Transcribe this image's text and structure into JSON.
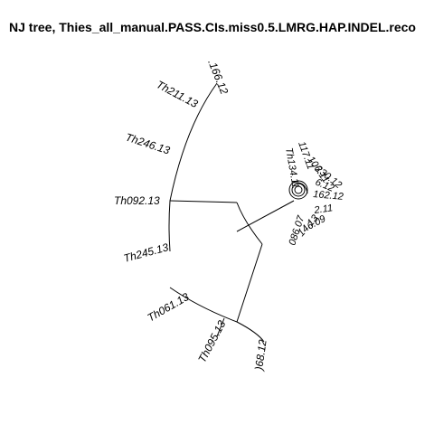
{
  "title": "NJ tree,  Thies_all_manual.PASS.CIs.miss0.5.LMRG.HAP.INDEL.reco",
  "tips_left": [
    {
      "label": ".166.12"
    },
    {
      "label": "Th211.13"
    },
    {
      "label": "Th246.13"
    },
    {
      "label": "Th092.13"
    },
    {
      "label": "Th245.13"
    },
    {
      "label": "Th061.13"
    },
    {
      "label": "Th095.13"
    },
    {
      "label": ")68.12"
    }
  ],
  "tips_cluster": [
    {
      "label": "Th134.11"
    },
    {
      "label": "117.11"
    },
    {
      "label": "106.11"
    },
    {
      "label": "230.12"
    },
    {
      "label": "6.12"
    },
    {
      "label": "162.12"
    },
    {
      "label": "2.11"
    },
    {
      "label": "6.09"
    },
    {
      "label": "14.13"
    },
    {
      "label": "086.07"
    }
  ]
}
